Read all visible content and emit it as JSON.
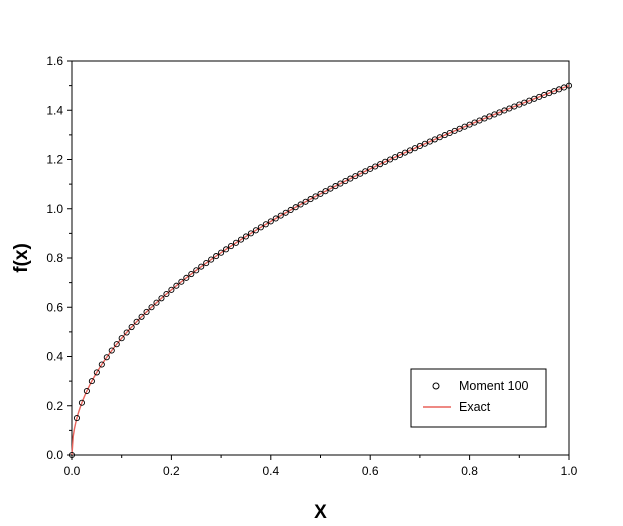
{
  "chart_data": {
    "type": "line",
    "title": "",
    "xlabel": "X",
    "ylabel": "f(x)",
    "xlim": [
      0.0,
      1.0
    ],
    "ylim": [
      0.0,
      1.6
    ],
    "xticks": [
      "0.0",
      "0.2",
      "0.4",
      "0.6",
      "0.8",
      "1.0"
    ],
    "yticks": [
      "0.0",
      "0.2",
      "0.4",
      "0.6",
      "0.8",
      "1.0",
      "1.2",
      "1.4",
      "1.6"
    ],
    "grid": false,
    "legend_position": "bottom-right",
    "series": [
      {
        "name": "Moment 100",
        "style": "markers",
        "marker": "open-circle",
        "color": "#000000",
        "function": "1.5*sqrt(x)",
        "x_range": [
          0.0,
          1.0
        ],
        "point_count": 101
      },
      {
        "name": "Exact",
        "style": "line",
        "color": "#e8625a",
        "function": "1.5*sqrt(x)",
        "x_range": [
          0.0,
          1.0
        ]
      }
    ]
  }
}
